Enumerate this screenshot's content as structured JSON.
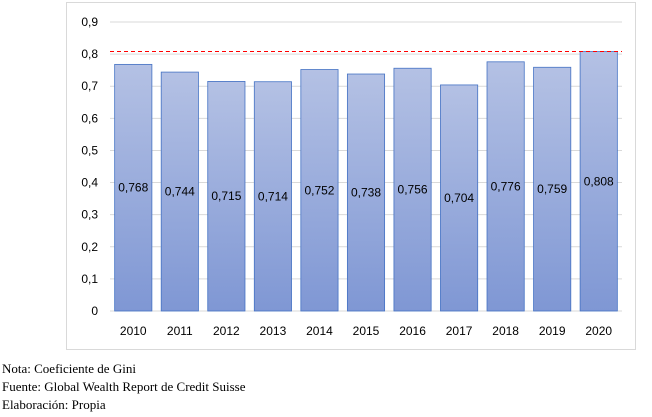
{
  "chart_data": {
    "type": "bar",
    "categories": [
      "2010",
      "2011",
      "2012",
      "2013",
      "2014",
      "2015",
      "2016",
      "2017",
      "2018",
      "2019",
      "2020"
    ],
    "values": [
      0.768,
      0.744,
      0.715,
      0.714,
      0.752,
      0.738,
      0.756,
      0.704,
      0.776,
      0.759,
      0.808
    ],
    "value_labels": [
      "0,768",
      "0,744",
      "0,715",
      "0,714",
      "0,752",
      "0,738",
      "0,756",
      "0,704",
      "0,776",
      "0,759",
      "0,808"
    ],
    "y_ticks": [
      0,
      0.1,
      0.2,
      0.3,
      0.4,
      0.5,
      0.6,
      0.7,
      0.8,
      0.9
    ],
    "y_tick_labels": [
      "0",
      "0,1",
      "0,2",
      "0,3",
      "0,4",
      "0,5",
      "0,6",
      "0,7",
      "0,8",
      "0,9"
    ],
    "ylim": [
      0,
      0.9
    ],
    "reference_line": {
      "value": 0.808,
      "style": "dashed",
      "color": "#ff0000"
    },
    "grid": true,
    "legend": false,
    "title": "",
    "xlabel": "",
    "ylabel": "",
    "colors": {
      "bar_top": "#b4c1e4",
      "bar_bottom": "#7f97d4",
      "bar_stroke": "#4472c4",
      "grid": "#d9d9d9"
    }
  },
  "notes": {
    "nota": "Nota: Coeficiente de Gini",
    "fuente": "Fuente: Global Wealth Report de Credit Suisse",
    "elaboracion": "Elaboración: Propia"
  }
}
